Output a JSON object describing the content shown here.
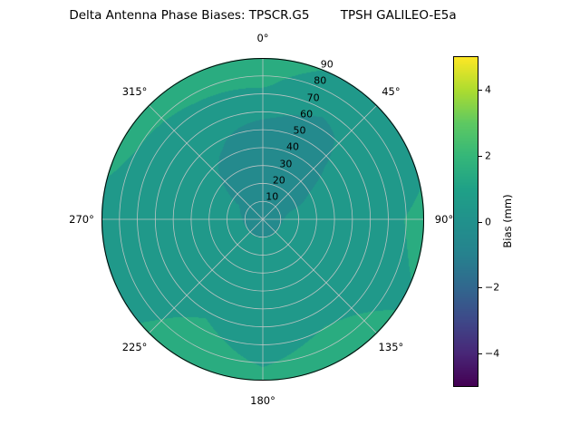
{
  "chart_data": {
    "type": "heatmap",
    "projection": "polar",
    "title": "Delta Antenna Phase Biases: TPSCR.G5        TPSH GALILEO-E5a",
    "theta_ticks": [
      {
        "angle": 0,
        "label": "0°"
      },
      {
        "angle": 45,
        "label": "45°"
      },
      {
        "angle": 90,
        "label": "90°"
      },
      {
        "angle": 135,
        "label": "135°"
      },
      {
        "angle": 180,
        "label": "180°"
      },
      {
        "angle": 225,
        "label": "225°"
      },
      {
        "angle": 270,
        "label": "270°"
      },
      {
        "angle": 315,
        "label": "315°"
      }
    ],
    "r_ticks": [
      {
        "value": 10,
        "label": "10"
      },
      {
        "value": 20,
        "label": "20"
      },
      {
        "value": 30,
        "label": "30"
      },
      {
        "value": 40,
        "label": "40"
      },
      {
        "value": 50,
        "label": "50"
      },
      {
        "value": 60,
        "label": "60"
      },
      {
        "value": 70,
        "label": "70"
      },
      {
        "value": 80,
        "label": "80"
      },
      {
        "value": 90,
        "label": "90"
      }
    ],
    "r_max": 90,
    "rlabel_angle_deg": 22.5,
    "grid_color": "#c9c9c9",
    "outline_color": "#000000",
    "colorbar": {
      "label": "Bias (mm)",
      "min": -5,
      "max": 5,
      "ticks": [
        {
          "value": 4,
          "label": "4"
        },
        {
          "value": 2,
          "label": "2"
        },
        {
          "value": 0,
          "label": "0"
        },
        {
          "value": -2,
          "label": "−2"
        },
        {
          "value": -4,
          "label": "−4"
        }
      ],
      "colormap": "viridis",
      "stops": [
        {
          "t": 0.0,
          "color": "#440154"
        },
        {
          "t": 0.1,
          "color": "#482878"
        },
        {
          "t": 0.2,
          "color": "#3e4989"
        },
        {
          "t": 0.3,
          "color": "#31688e"
        },
        {
          "t": 0.4,
          "color": "#26828e"
        },
        {
          "t": 0.5,
          "color": "#21918c"
        },
        {
          "t": 0.6,
          "color": "#1fa187"
        },
        {
          "t": 0.7,
          "color": "#35b779"
        },
        {
          "t": 0.8,
          "color": "#5ec962"
        },
        {
          "t": 0.9,
          "color": "#addc30"
        },
        {
          "t": 1.0,
          "color": "#fde725"
        }
      ]
    },
    "grid": {
      "azimuth_deg": [
        0,
        30,
        60,
        90,
        120,
        150,
        180,
        210,
        240,
        270,
        300,
        330,
        360
      ],
      "zenith_deg": [
        0,
        15,
        30,
        45,
        60,
        75,
        90
      ],
      "bias_mm": [
        [
          -0.6,
          -0.6,
          -0.6,
          -0.6,
          -0.6,
          -0.6,
          -0.6,
          -0.6,
          -0.6,
          -0.6,
          -0.6,
          -0.6,
          -0.6
        ],
        [
          -0.8,
          -0.7,
          -0.2,
          0.2,
          0.3,
          0.3,
          0.3,
          0.3,
          0.3,
          0.2,
          0.0,
          -0.5,
          -0.8
        ],
        [
          -0.8,
          -0.6,
          0.0,
          0.3,
          0.4,
          0.4,
          0.4,
          0.4,
          0.5,
          0.4,
          0.2,
          -0.3,
          -0.8
        ],
        [
          -0.5,
          -0.4,
          0.2,
          0.4,
          0.4,
          0.5,
          0.5,
          0.5,
          0.6,
          0.5,
          0.3,
          0.0,
          -0.5
        ],
        [
          0.2,
          -0.2,
          0.3,
          0.6,
          0.8,
          0.7,
          0.5,
          0.9,
          0.6,
          0.6,
          0.5,
          0.3,
          0.2
        ],
        [
          1.1,
          0.3,
          0.2,
          0.9,
          0.8,
          1.2,
          0.8,
          1.3,
          0.6,
          0.6,
          0.8,
          1.0,
          1.1
        ],
        [
          1.6,
          0.8,
          0.5,
          1.3,
          0.9,
          1.6,
          1.2,
          1.6,
          0.7,
          0.6,
          1.4,
          1.6,
          1.6
        ]
      ]
    }
  }
}
